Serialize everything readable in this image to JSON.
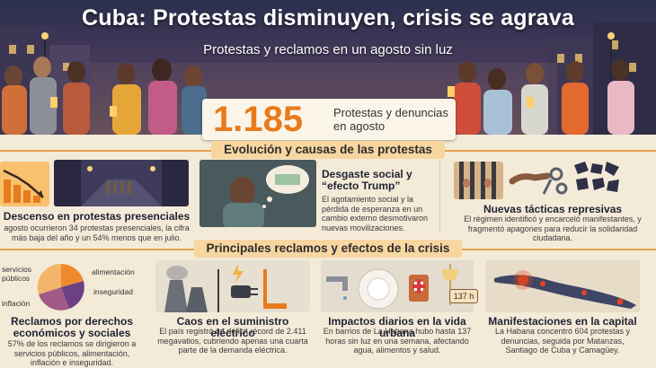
{
  "header": {
    "title": "Cuba: Protestas disminuyen, crisis se agrava",
    "subtitle": "Protestas y reclamos en un agosto sin luz"
  },
  "stat": {
    "value": "1.185",
    "label": "Protestas y denuncias en agosto"
  },
  "sections": {
    "evolution": "Evolución y causas de las protestas",
    "claims": "Principales reclamos y efectos de la crisis"
  },
  "evolution_cards": [
    {
      "title": "Descenso en protestas presenciales",
      "body": "agosto ocurrieron 34 protestas presenciales, la cifra más baja del año y un 54% menos que en julio."
    },
    {
      "title": "Desgaste social y “efecto Trump”",
      "body": "El agotamiento social y la pérdida de esperanza en un cambio externo desmotivaron nuevas movilizaciones."
    },
    {
      "title": "Nuevas tácticas represivas",
      "body": "El régimen identificó y encarceló manifestantes, y fragmentó apagones para reducir la solidaridad ciudadana."
    }
  ],
  "claim_cards": [
    {
      "title": "Reclamos por derechos económicos y sociales",
      "body": "57% de los reclamos se dirigieron a servicios públicos, alimentación, inflación e inseguridad."
    },
    {
      "title": "Caos en el suministro eléctrico",
      "body": "El país registró un déficit récord de 2.411 megavatios, cubriendo apenas una cuarta parte de la demanda eléctrica."
    },
    {
      "title": "Impactos diarios en la vida urbana",
      "body": "En barrios de La Habana hubo hasta 137 horas sin luz en una semana, afectando agua, alimentos y salud."
    },
    {
      "title": "Manifestaciones en la capital",
      "body": "La Habana concentró 604 protestas y denuncias, seguida por Matanzas, Santiago de Cuba y Camagüey."
    }
  ],
  "pie_labels": {
    "servicios": "servicios públicos",
    "alimentacion": "alimentación",
    "inseguridad": "inseguridad",
    "inflacion": "inflación"
  },
  "badge_hours": "137 h",
  "colors": {
    "accent": "#e77b1d",
    "section_pill": "#f8d6a0",
    "pie_orange": "#ef8a2c",
    "pie_purple": "#6d3f83",
    "pie_plum": "#a05a86",
    "pie_peach": "#f3b56a"
  }
}
